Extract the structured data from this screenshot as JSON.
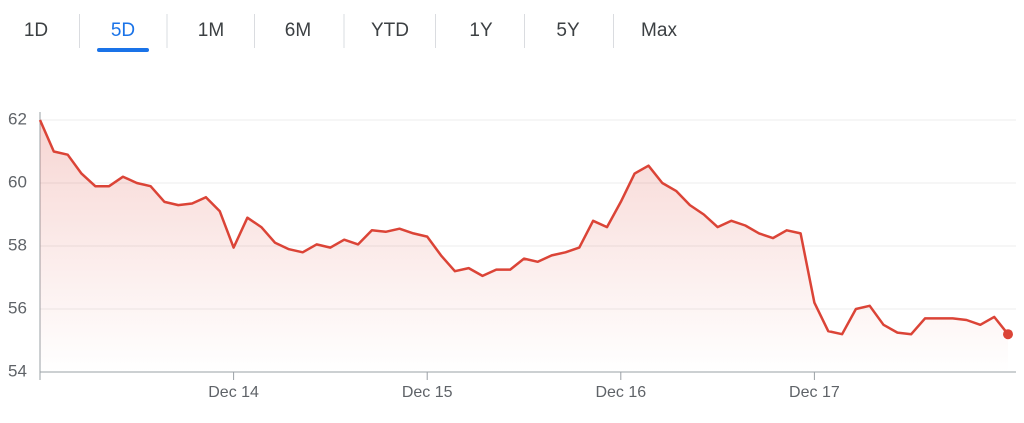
{
  "tabs": {
    "labels": [
      "1D",
      "5D",
      "1M",
      "6M",
      "YTD",
      "1Y",
      "5Y",
      "Max"
    ],
    "selected": 1
  },
  "chart_data": {
    "type": "line",
    "categories": [
      null,
      null,
      null,
      null,
      null,
      null,
      null,
      null,
      null,
      null,
      null,
      null,
      null,
      null,
      "Dec 14",
      null,
      null,
      null,
      null,
      null,
      null,
      null,
      null,
      null,
      null,
      null,
      null,
      null,
      "Dec 15",
      null,
      null,
      null,
      null,
      null,
      null,
      null,
      null,
      null,
      null,
      null,
      null,
      null,
      "Dec 16",
      null,
      null,
      null,
      null,
      null,
      null,
      null,
      null,
      null,
      null,
      null,
      null,
      null,
      "Dec 17",
      null,
      null,
      null,
      null,
      null,
      null,
      null,
      null,
      null,
      null,
      null,
      null,
      null,
      null
    ],
    "series": [
      {
        "color": "#db4437",
        "values": [
          62.0,
          61.0,
          60.9,
          60.3,
          59.9,
          59.9,
          60.2,
          60.0,
          59.9,
          59.4,
          59.3,
          59.35,
          59.55,
          59.1,
          57.95,
          58.9,
          58.6,
          58.1,
          57.9,
          57.8,
          58.05,
          57.95,
          58.2,
          58.05,
          58.5,
          58.45,
          58.55,
          58.4,
          58.3,
          57.7,
          57.2,
          57.3,
          57.05,
          57.25,
          57.25,
          57.6,
          57.5,
          57.7,
          57.8,
          57.95,
          58.8,
          58.6,
          59.4,
          60.3,
          60.55,
          60.0,
          59.75,
          59.3,
          59.0,
          58.6,
          58.8,
          58.65,
          58.4,
          58.25,
          58.5,
          58.4,
          56.2,
          55.3,
          55.2,
          56.0,
          56.1,
          55.5,
          55.25,
          55.2,
          55.7,
          55.7,
          55.7,
          55.65,
          55.5,
          55.75,
          55.2
        ]
      }
    ],
    "ylim": [
      54,
      62
    ],
    "yticks": [
      54,
      56,
      58,
      60,
      62
    ],
    "grid": true
  }
}
